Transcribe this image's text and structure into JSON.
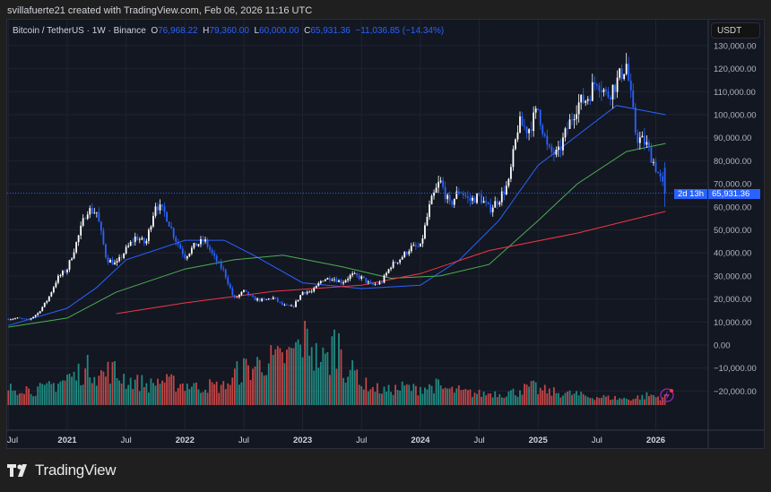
{
  "credit": "svillafuerte21 created with TradingView.com, Feb 06, 2026 11:16 UTC",
  "legend": {
    "symbol": "Bitcoin / TetherUS · 1W · Binance",
    "open_label": "O",
    "open": "76,968.22",
    "high_label": "H",
    "high": "79,360.00",
    "low_label": "L",
    "low": "60,000.00",
    "close_label": "C",
    "close": "65,931.36",
    "change": "−11,036.85 (−14.34%)"
  },
  "currency": "USDT",
  "price_tag": {
    "price": "65,931.36",
    "countdown": "2d 13h"
  },
  "logo_text": "TradingView",
  "colors": {
    "up": "#ffffff",
    "down": "#2962ff",
    "ma_blue": "#2962ff",
    "ma_green": "#4caf50",
    "ma_red": "#f23645",
    "vol_up": "#26a69a",
    "vol_down": "#ef5350",
    "background": "#131722"
  },
  "chart_data": {
    "type": "candlestick",
    "interval": "1W",
    "y_ticks": [
      "130,000.00",
      "120,000.00",
      "110,000.00",
      "100,000.00",
      "90,000.00",
      "80,000.00",
      "70,000.00",
      "60,000.00",
      "50,000.00",
      "40,000.00",
      "30,000.00",
      "20,000.00",
      "10,000.00",
      "0.00",
      "−10,000.00",
      "−20,000.00"
    ],
    "ylim": [
      -27000,
      135000
    ],
    "x_ticks": [
      "Jul",
      "2021",
      "Jul",
      "2022",
      "Jul",
      "2023",
      "Jul",
      "2024",
      "Jul",
      "2025",
      "Jul",
      "2026"
    ],
    "x_tick_dates": [
      "2020-07",
      "2021-01",
      "2021-07",
      "2022-01",
      "2022-07",
      "2023-01",
      "2023-07",
      "2024-01",
      "2024-07",
      "2025-01",
      "2025-07",
      "2026-01"
    ],
    "monthly_closes": {
      "start": "2020-07",
      "values": [
        11300,
        11650,
        10780,
        13800,
        19700,
        29000,
        33100,
        45200,
        58800,
        57700,
        37300,
        35000,
        41500,
        47100,
        43800,
        61300,
        57000,
        46300,
        38500,
        43200,
        45500,
        37700,
        31800,
        19900,
        23300,
        20000,
        19400,
        20500,
        17200,
        16500,
        23100,
        23100,
        28500,
        29200,
        27200,
        30500,
        29200,
        26000,
        27000,
        34500,
        37700,
        42300,
        42600,
        61200,
        71300,
        60600,
        67500,
        62700,
        64600,
        58900,
        63300,
        70200,
        96400,
        93400,
        102400,
        84300,
        82500,
        94200,
        104600,
        107100,
        115700,
        108200,
        114000,
        122000,
        90400,
        87500,
        76968,
        65931
      ]
    },
    "last_candle": {
      "open": 76968.22,
      "high": 79360.0,
      "low": 60000.0,
      "close": 65931.36
    },
    "moving_averages": [
      {
        "color": "#2962ff",
        "points": [
          [
            "2020-07",
            8500
          ],
          [
            "2021-01",
            16000
          ],
          [
            "2021-04",
            25000
          ],
          [
            "2021-07",
            37000
          ],
          [
            "2022-01",
            45500
          ],
          [
            "2022-05",
            45500
          ],
          [
            "2022-08",
            39000
          ],
          [
            "2023-01",
            27000
          ],
          [
            "2023-07",
            24500
          ],
          [
            "2024-01",
            26000
          ],
          [
            "2024-05",
            37000
          ],
          [
            "2024-09",
            54000
          ],
          [
            "2025-01",
            78000
          ],
          [
            "2025-05",
            91000
          ],
          [
            "2025-09",
            104000
          ],
          [
            "2026-02",
            100000
          ]
        ]
      },
      {
        "color": "#4caf50",
        "points": [
          [
            "2020-07",
            7800
          ],
          [
            "2021-01",
            11700
          ],
          [
            "2021-06",
            23000
          ],
          [
            "2022-01",
            33000
          ],
          [
            "2022-06",
            37000
          ],
          [
            "2022-11",
            39000
          ],
          [
            "2023-05",
            34000
          ],
          [
            "2023-10",
            29000
          ],
          [
            "2024-03",
            30000
          ],
          [
            "2024-08",
            35000
          ],
          [
            "2025-01",
            54000
          ],
          [
            "2025-05",
            70000
          ],
          [
            "2025-10",
            84000
          ],
          [
            "2026-02",
            87500
          ]
        ]
      },
      {
        "color": "#f23645",
        "points": [
          [
            "2021-06",
            13600
          ],
          [
            "2022-01",
            18300
          ],
          [
            "2022-10",
            23300
          ],
          [
            "2023-07",
            26000
          ],
          [
            "2024-01",
            31000
          ],
          [
            "2024-08",
            41000
          ],
          [
            "2025-05",
            48600
          ],
          [
            "2026-02",
            58000
          ]
        ]
      }
    ],
    "volume_relative_monthly": [
      20,
      22,
      18,
      20,
      25,
      30,
      35,
      40,
      45,
      38,
      42,
      35,
      30,
      28,
      25,
      30,
      28,
      26,
      25,
      22,
      24,
      23,
      28,
      40,
      45,
      50,
      55,
      55,
      60,
      70,
      80,
      60,
      55,
      75,
      45,
      40,
      25,
      20,
      18,
      20,
      22,
      20,
      22,
      24,
      20,
      18,
      16,
      15,
      14,
      15,
      14,
      16,
      20,
      22,
      18,
      16,
      15,
      14,
      12,
      10,
      10,
      9,
      8,
      8,
      10,
      12,
      10,
      8
    ],
    "grid": true,
    "legend": "top-left"
  }
}
